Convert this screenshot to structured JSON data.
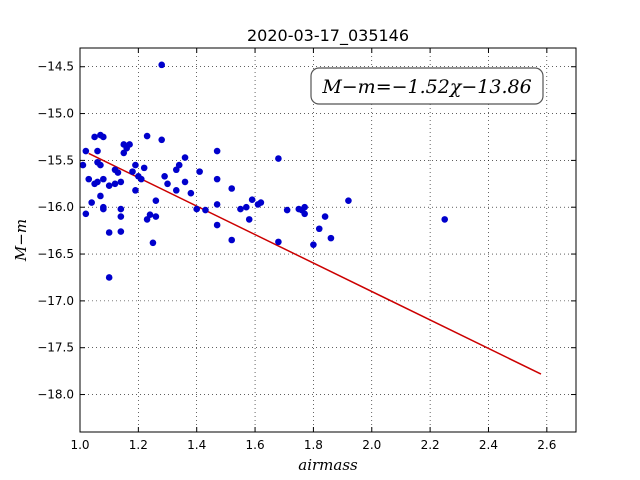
{
  "chart_data": {
    "type": "scatter",
    "title": "2020-03-17_035146",
    "xlabel": "airmass",
    "ylabel": "M−m",
    "annotation": "M−m=−1.52χ−13.86",
    "xlim": [
      1.0,
      2.7
    ],
    "ylim": [
      -18.4,
      -14.3
    ],
    "ylim_note": "y axis shown inverted (less negative at top)",
    "x_ticks": [
      1.0,
      1.2,
      1.4,
      1.6,
      1.8,
      2.0,
      2.2,
      2.4,
      2.6
    ],
    "x_tick_labels": [
      "1.0",
      "1.2",
      "1.4",
      "1.6",
      "1.8",
      "2.0",
      "2.2",
      "2.4",
      "2.6"
    ],
    "y_ticks": [
      -14.5,
      -15.0,
      -15.5,
      -16.0,
      -16.5,
      -17.0,
      -17.5,
      -18.0
    ],
    "y_tick_labels": [
      "−14.5",
      "−15.0",
      "−15.5",
      "−16.0",
      "−16.5",
      "−17.0",
      "−17.5",
      "−18.0"
    ],
    "grid": true,
    "series": [
      {
        "type": "scatter",
        "color": "#0000cc",
        "points": [
          [
            1.01,
            -15.55
          ],
          [
            1.02,
            -15.4
          ],
          [
            1.03,
            -15.7
          ],
          [
            1.02,
            -16.07
          ],
          [
            1.04,
            -15.95
          ],
          [
            1.05,
            -15.25
          ],
          [
            1.06,
            -15.4
          ],
          [
            1.06,
            -15.73
          ],
          [
            1.07,
            -15.23
          ],
          [
            1.08,
            -15.25
          ],
          [
            1.06,
            -15.52
          ],
          [
            1.07,
            -15.55
          ],
          [
            1.05,
            -15.75
          ],
          [
            1.08,
            -15.7
          ],
          [
            1.07,
            -15.88
          ],
          [
            1.08,
            -16.0
          ],
          [
            1.08,
            -16.02
          ],
          [
            1.1,
            -15.77
          ],
          [
            1.12,
            -15.75
          ],
          [
            1.1,
            -16.27
          ],
          [
            1.12,
            -15.6
          ],
          [
            1.13,
            -15.63
          ],
          [
            1.14,
            -15.73
          ],
          [
            1.14,
            -16.02
          ],
          [
            1.14,
            -16.1
          ],
          [
            1.14,
            -16.26
          ],
          [
            1.1,
            -16.75
          ],
          [
            1.15,
            -15.33
          ],
          [
            1.15,
            -15.42
          ],
          [
            1.16,
            -15.37
          ],
          [
            1.17,
            -15.33
          ],
          [
            1.18,
            -15.62
          ],
          [
            1.19,
            -15.55
          ],
          [
            1.19,
            -15.82
          ],
          [
            1.2,
            -15.67
          ],
          [
            1.21,
            -15.7
          ],
          [
            1.22,
            -15.58
          ],
          [
            1.23,
            -15.24
          ],
          [
            1.23,
            -16.13
          ],
          [
            1.24,
            -16.08
          ],
          [
            1.25,
            -16.38
          ],
          [
            1.26,
            -15.93
          ],
          [
            1.26,
            -16.1
          ],
          [
            1.28,
            -14.48
          ],
          [
            1.28,
            -15.28
          ],
          [
            1.29,
            -15.67
          ],
          [
            1.3,
            -15.75
          ],
          [
            1.33,
            -15.82
          ],
          [
            1.33,
            -15.6
          ],
          [
            1.34,
            -15.55
          ],
          [
            1.36,
            -15.47
          ],
          [
            1.36,
            -15.73
          ],
          [
            1.38,
            -15.85
          ],
          [
            1.4,
            -16.02
          ],
          [
            1.41,
            -15.62
          ],
          [
            1.43,
            -16.03
          ],
          [
            1.47,
            -15.4
          ],
          [
            1.47,
            -15.7
          ],
          [
            1.47,
            -15.97
          ],
          [
            1.47,
            -16.19
          ],
          [
            1.52,
            -15.8
          ],
          [
            1.52,
            -16.35
          ],
          [
            1.55,
            -16.02
          ],
          [
            1.57,
            -16.0
          ],
          [
            1.58,
            -16.13
          ],
          [
            1.59,
            -15.92
          ],
          [
            1.61,
            -15.97
          ],
          [
            1.62,
            -15.95
          ],
          [
            1.68,
            -15.48
          ],
          [
            1.68,
            -16.37
          ],
          [
            1.71,
            -16.03
          ],
          [
            1.75,
            -16.02
          ],
          [
            1.76,
            -16.03
          ],
          [
            1.77,
            -16.0
          ],
          [
            1.77,
            -16.07
          ],
          [
            1.8,
            -16.4
          ],
          [
            1.82,
            -16.23
          ],
          [
            1.84,
            -16.1
          ],
          [
            1.86,
            -16.33
          ],
          [
            1.92,
            -15.93
          ],
          [
            2.25,
            -16.13
          ]
        ]
      },
      {
        "type": "line",
        "color": "#cc0000",
        "slope": -1.52,
        "intercept": -13.86,
        "x_range": [
          1.03,
          2.58
        ]
      }
    ]
  }
}
